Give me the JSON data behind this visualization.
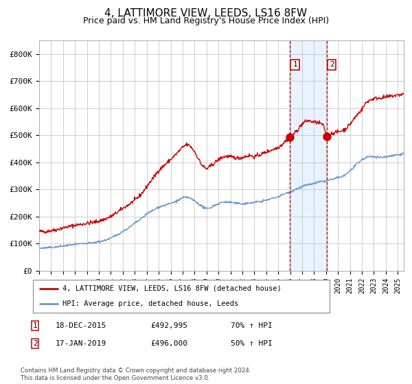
{
  "title": "4, LATTIMORE VIEW, LEEDS, LS16 8FW",
  "subtitle": "Price paid vs. HM Land Registry's House Price Index (HPI)",
  "title_fontsize": 11,
  "subtitle_fontsize": 9,
  "ylim": [
    0,
    850000
  ],
  "yticks": [
    0,
    100000,
    200000,
    300000,
    400000,
    500000,
    600000,
    700000,
    800000
  ],
  "ytick_labels": [
    "£0",
    "£100K",
    "£200K",
    "£300K",
    "£400K",
    "£500K",
    "£600K",
    "£700K",
    "£800K"
  ],
  "xlim_start": 1995,
  "xlim_end": 2025.5,
  "red_line_color": "#cc0000",
  "blue_line_color": "#6699cc",
  "background_color": "#ffffff",
  "grid_color": "#bbbbbb",
  "purchase1_x": 2015.96,
  "purchase1_y": 492995,
  "purchase2_x": 2019.04,
  "purchase2_y": 496000,
  "purchase1_date": "18-DEC-2015",
  "purchase2_date": "17-JAN-2019",
  "purchase1_price": "£492,995",
  "purchase2_price": "£496,000",
  "purchase1_hpi": "70% ↑ HPI",
  "purchase2_hpi": "50% ↑ HPI",
  "shade_color": "#ddeeff",
  "shade_alpha": 0.65,
  "footnote": "Contains HM Land Registry data © Crown copyright and database right 2024.\nThis data is licensed under the Open Government Licence v3.0.",
  "legend1": "4, LATTIMORE VIEW, LEEDS, LS16 8FW (detached house)",
  "legend2": "HPI: Average price, detached house, Leeds"
}
